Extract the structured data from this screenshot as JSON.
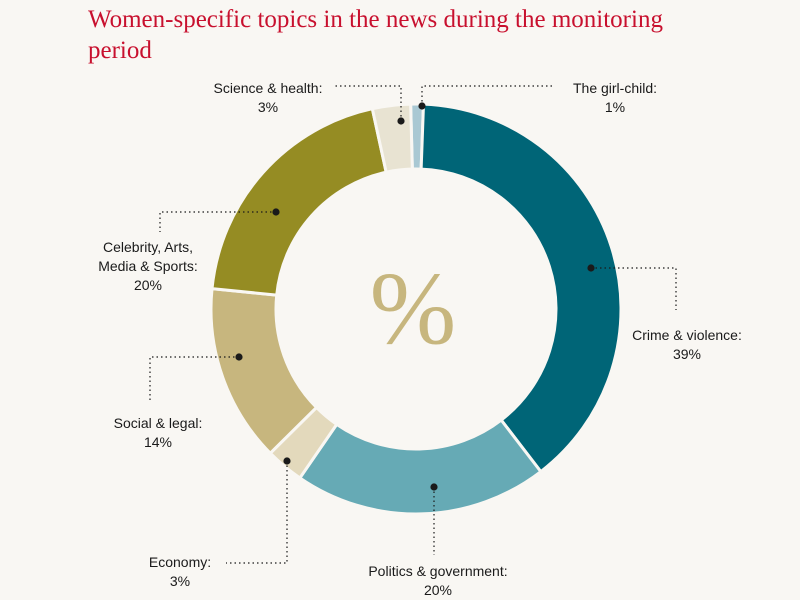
{
  "chart_data": {
    "type": "pie",
    "variant": "donut",
    "title": "Women-specific topics in the news during the monitoring period",
    "center_label": "%",
    "slices": [
      {
        "label": "The girl-child:",
        "value_label": "1%",
        "value": 1,
        "color": "#a9c8d3"
      },
      {
        "label": "Crime & violence:",
        "value_label": "39%",
        "value": 39,
        "color": "#006577"
      },
      {
        "label": "Politics & government:",
        "value_label": "20%",
        "value": 20,
        "color": "#66aab5"
      },
      {
        "label": "Economy:",
        "value_label": "3%",
        "value": 3,
        "color": "#e3d9bc"
      },
      {
        "label": "Social & legal:",
        "value_label": "14%",
        "value": 14,
        "color": "#c7b67e"
      },
      {
        "label": "Celebrity, Arts, Media & Sports:",
        "value_label": "20%",
        "value": 20,
        "color": "#958c23"
      },
      {
        "label": "Science & health:",
        "value_label": "3%",
        "value": 3,
        "color": "#e8e3d2"
      }
    ],
    "colors": {
      "title": "#c8102e",
      "center_label": "#c7b67e",
      "leader": "#1a1a1a",
      "background": "#f9f7f3"
    }
  }
}
